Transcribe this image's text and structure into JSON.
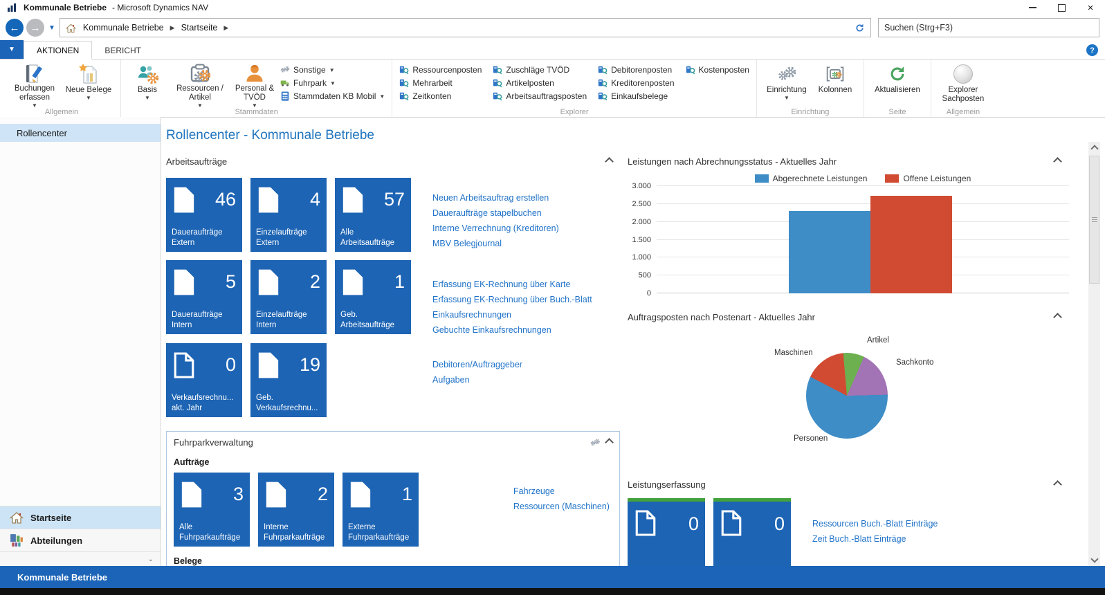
{
  "window": {
    "title": "Kommunale Betriebe",
    "title_suffix": "- Microsoft Dynamics NAV"
  },
  "address_bar": {
    "breadcrumb": [
      "Kommunale Betriebe",
      "Startseite"
    ],
    "search_placeholder": "Suchen (Strg+F3)"
  },
  "icons": {
    "app": "dynamics-nav-logo",
    "back": "arrow-left-circle",
    "forward": "arrow-right-circle",
    "home": "home",
    "refresh": "refresh-arrows",
    "help": "question-mark-circle",
    "window_controls": [
      "minimize",
      "restore",
      "close"
    ]
  },
  "ribbon": {
    "tabs": [
      {
        "label": "AKTIONEN",
        "active": true
      },
      {
        "label": "BERICHT",
        "active": false
      }
    ],
    "groups": {
      "allgemein1": {
        "label": "Allgemein",
        "buttons": [
          "Buchungen erfassen",
          "Neue Belege"
        ]
      },
      "stammdaten": {
        "label": "Stammdaten",
        "big": [
          "Basis",
          "Ressourcen / Artikel",
          "Personal & TVÖD"
        ],
        "small": [
          "Sonstige",
          "Fuhrpark",
          "Stammdaten KB Mobil"
        ]
      },
      "explorer": {
        "label": "Explorer",
        "columns": [
          [
            "Ressourcenposten",
            "Mehrarbeit",
            "Zeitkonten"
          ],
          [
            "Zuschläge TVÖD",
            "Artikelposten",
            "Arbeitsauftragsposten"
          ],
          [
            "Debitorenposten",
            "Kreditorenposten",
            "Einkaufsbelege"
          ],
          [
            "Kostenposten"
          ]
        ]
      },
      "einrichtung": {
        "label": "Einrichtung",
        "buttons": [
          "Einrichtung",
          "Kolonnen"
        ]
      },
      "seite": {
        "label": "Seite",
        "buttons": [
          "Aktualisieren"
        ]
      },
      "allgemein2": {
        "label": "Allgemein",
        "buttons": [
          "Explorer Sachposten"
        ]
      }
    }
  },
  "navpane": {
    "top_item": "Rollencenter",
    "items": [
      "Startseite",
      "Abteilungen"
    ]
  },
  "page": {
    "title": "Rollencenter - Kommunale Betriebe"
  },
  "work_orders": {
    "section_title": "Arbeitsaufträge",
    "tiles": [
      {
        "count": "46",
        "label": "Daueraufträge Extern"
      },
      {
        "count": "4",
        "label": "Einzelaufträge Extern"
      },
      {
        "count": "57",
        "label": "Alle Arbeitsaufträge"
      },
      {
        "count": "5",
        "label": "Daueraufträge Intern"
      },
      {
        "count": "2",
        "label": "Einzelaufträge Intern"
      },
      {
        "count": "1",
        "label": "Geb. Arbeitsaufträge"
      },
      {
        "count": "0",
        "label": "Verkaufsrechnu... akt. Jahr"
      },
      {
        "count": "19",
        "label": "Geb. Verkaufsrechnu..."
      }
    ],
    "links_group1": [
      "Neuen Arbeitsauftrag erstellen",
      "Daueraufträge stapelbuchen",
      "Interne Verrechnung (Kreditoren)",
      "MBV Belegjournal"
    ],
    "links_group2": [
      "Erfassung EK-Rechnung über Karte",
      "Erfassung EK-Rechnung über Buch.-Blatt",
      "Einkaufsrechnungen",
      "Gebuchte Einkaufsrechnungen"
    ],
    "links_group3": [
      "Debitoren/Auftraggeber",
      "Aufgaben"
    ]
  },
  "fleet": {
    "section_title": "Fuhrparkverwaltung",
    "subheader": "Aufträge",
    "tiles": [
      {
        "count": "3",
        "label": "Alle Fuhrparkaufträge"
      },
      {
        "count": "2",
        "label": "Interne Fuhrparkaufträge"
      },
      {
        "count": "1",
        "label": "Externe Fuhrparkaufträge"
      }
    ],
    "links": [
      "Fahrzeuge",
      "Ressourcen (Maschinen)"
    ],
    "subheader2": "Belege"
  },
  "performance": {
    "section_title": "Leistungserfassung",
    "tiles": [
      {
        "count": "0"
      },
      {
        "count": "0"
      }
    ],
    "links": [
      "Ressourcen Buch.-Blatt Einträge",
      "Zeit Buch.-Blatt Einträge"
    ]
  },
  "status_bar": {
    "text": "Kommunale Betriebe"
  },
  "colors": {
    "tile_blue": "#1d64b4",
    "accent_blue": "#1b64b7",
    "link_blue": "#1f72c8",
    "tile_green_bar": "#43a23c",
    "bar_billed": "#3e8dc6",
    "bar_open": "#d14b32"
  },
  "chart_data": [
    {
      "type": "bar",
      "title": "Leistungen nach Abrechnungsstatus - Aktuelles Jahr",
      "categories": [
        ""
      ],
      "series": [
        {
          "name": "Abgerechnete Leistungen",
          "values": [
            2300
          ],
          "color": "#3e8dc6"
        },
        {
          "name": "Offene Leistungen",
          "values": [
            2720
          ],
          "color": "#d14b32"
        }
      ],
      "ylim": [
        0,
        3000
      ],
      "yticks": [
        "3.000",
        "2.500",
        "2.000",
        "1.500",
        "1.000",
        "500",
        "0"
      ],
      "ytick_values": [
        3000,
        2500,
        2000,
        1500,
        1000,
        500,
        0
      ],
      "legend_position": "top",
      "grid": true
    },
    {
      "type": "pie",
      "title": "Auftragsposten nach Postenart - Aktuelles Jahr",
      "start_angle_deg": -5,
      "slices": [
        {
          "label": "Artikel",
          "pct": 8,
          "color": "#6db04f"
        },
        {
          "label": "Sachkonto",
          "pct": 18,
          "color": "#a273b5"
        },
        {
          "label": "Personen",
          "pct": 58,
          "color": "#3e8dc6"
        },
        {
          "label": "Maschinen",
          "pct": 16,
          "color": "#d14b32"
        }
      ]
    }
  ]
}
